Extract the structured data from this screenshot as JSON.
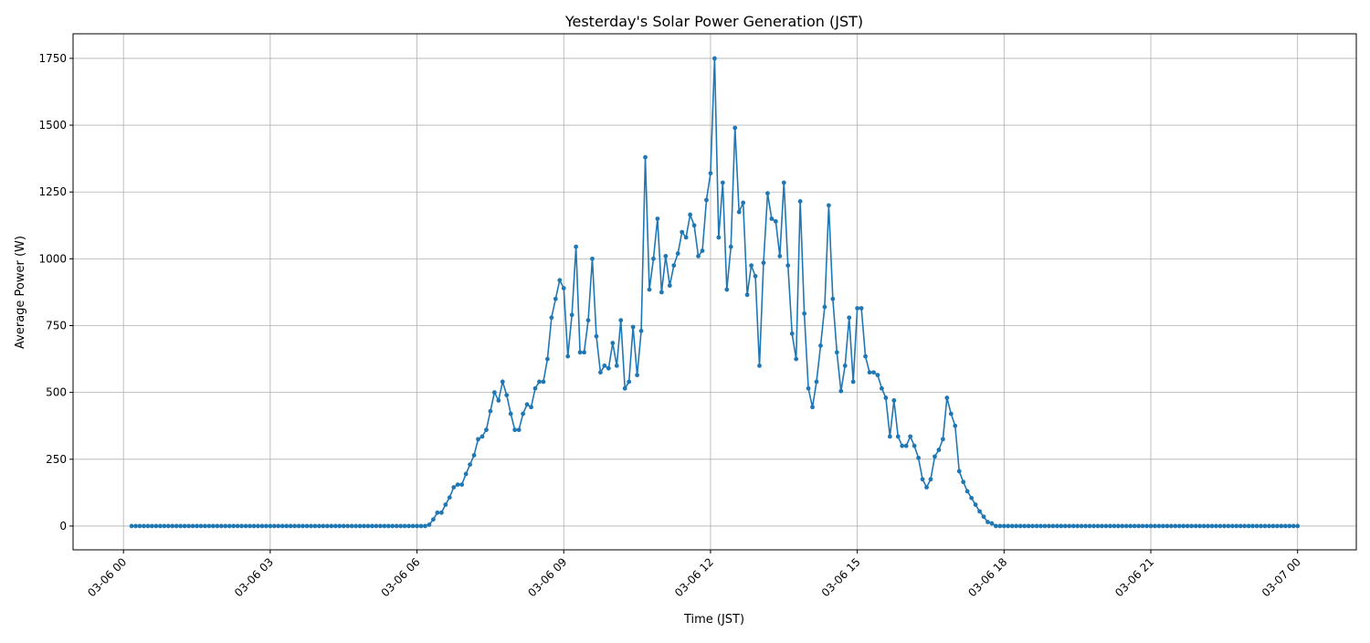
{
  "chart_data": {
    "type": "line",
    "title": "Yesterday's Solar Power Generation (JST)",
    "xlabel": "Time (JST)",
    "ylabel": "Average Power (W)",
    "x_start": "03-06 00:10",
    "x_interval_minutes": 5,
    "x_end": "03-07 00:00",
    "xlim_hours": [
      -1.03,
      25.2
    ],
    "ylim": [
      -89,
      1842
    ],
    "grid": true,
    "marker": "dot",
    "color": "#1f77b4",
    "x_tick_hours": [
      0,
      3,
      6,
      9,
      12,
      15,
      18,
      21,
      24
    ],
    "x_tick_labels": [
      "03-06 00",
      "03-06 03",
      "03-06 06",
      "03-06 09",
      "03-06 12",
      "03-06 15",
      "03-06 18",
      "03-06 21",
      "03-07 00"
    ],
    "y_ticks": [
      0,
      250,
      500,
      750,
      1000,
      1250,
      1500,
      1750
    ],
    "y_tick_labels": [
      "0",
      "250",
      "500",
      "750",
      "1000",
      "1250",
      "1500",
      "1750"
    ],
    "values": [
      0,
      0,
      0,
      0,
      0,
      0,
      0,
      0,
      0,
      0,
      0,
      0,
      0,
      0,
      0,
      0,
      0,
      0,
      0,
      0,
      0,
      0,
      0,
      0,
      0,
      0,
      0,
      0,
      0,
      0,
      0,
      0,
      0,
      0,
      0,
      0,
      0,
      0,
      0,
      0,
      0,
      0,
      0,
      0,
      0,
      0,
      0,
      0,
      0,
      0,
      0,
      0,
      0,
      0,
      0,
      0,
      0,
      0,
      0,
      0,
      0,
      0,
      0,
      0,
      0,
      0,
      0,
      0,
      0,
      0,
      0,
      0,
      0,
      5,
      25,
      50,
      50,
      80,
      107,
      145,
      155,
      155,
      195,
      230,
      265,
      325,
      335,
      360,
      430,
      500,
      470,
      540,
      490,
      420,
      360,
      360,
      420,
      455,
      445,
      515,
      540,
      540,
      625,
      780,
      850,
      920,
      890,
      635,
      790,
      1045,
      650,
      650,
      770,
      1000,
      710,
      575,
      600,
      590,
      685,
      600,
      770,
      515,
      540,
      745,
      565,
      730,
      1380,
      885,
      1000,
      1150,
      875,
      1010,
      900,
      975,
      1020,
      1100,
      1080,
      1165,
      1125,
      1010,
      1030,
      1220,
      1320,
      1750,
      1080,
      1285,
      885,
      1045,
      1490,
      1175,
      1210,
      865,
      975,
      935,
      600,
      985,
      1245,
      1150,
      1140,
      1010,
      1285,
      975,
      720,
      625,
      1215,
      795,
      515,
      445,
      540,
      675,
      820,
      1200,
      850,
      650,
      505,
      600,
      780,
      540,
      815,
      815,
      635,
      575,
      575,
      565,
      515,
      480,
      335,
      470,
      335,
      300,
      300,
      335,
      300,
      255,
      175,
      145,
      175,
      260,
      285,
      325,
      480,
      420,
      375,
      205,
      165,
      130,
      105,
      80,
      55,
      35,
      15,
      10,
      0,
      0,
      0,
      0,
      0,
      0,
      0,
      0,
      0,
      0,
      0,
      0,
      0,
      0,
      0,
      0,
      0,
      0,
      0,
      0,
      0,
      0,
      0,
      0,
      0,
      0,
      0,
      0,
      0,
      0,
      0,
      0,
      0,
      0,
      0,
      0,
      0,
      0,
      0,
      0,
      0,
      0,
      0,
      0,
      0,
      0,
      0,
      0,
      0,
      0,
      0,
      0,
      0,
      0,
      0,
      0,
      0,
      0,
      0,
      0,
      0,
      0,
      0,
      0,
      0,
      0,
      0,
      0,
      0,
      0,
      0,
      0,
      0,
      0,
      0
    ]
  }
}
